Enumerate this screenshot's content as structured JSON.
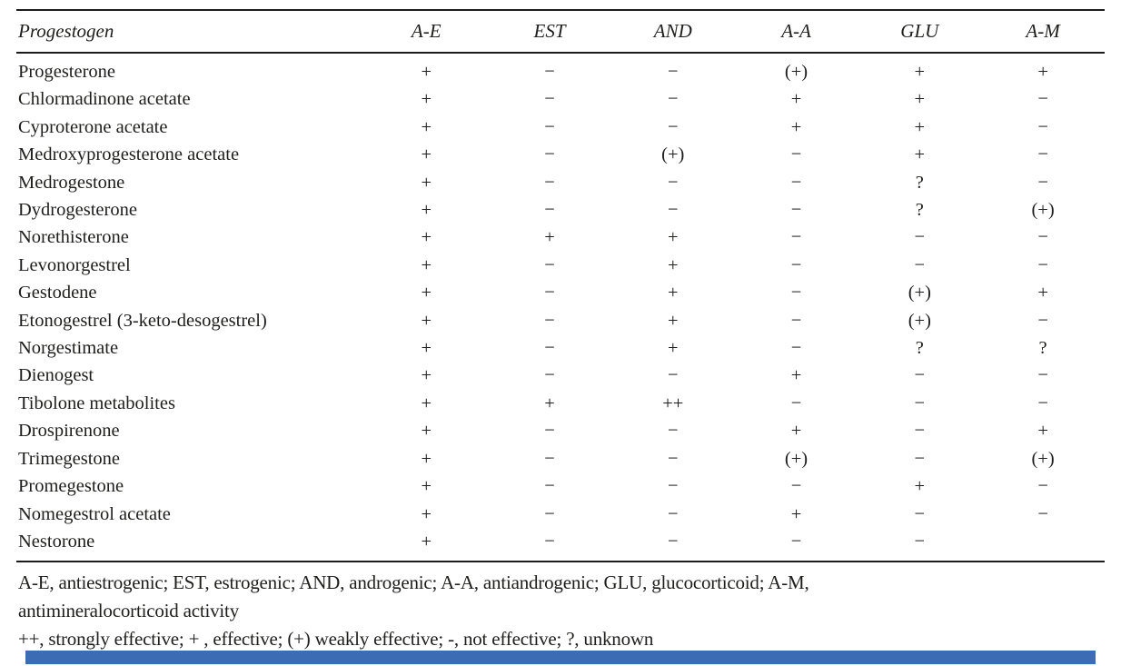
{
  "table": {
    "columns": [
      "Progestogen",
      "A-E",
      "EST",
      "AND",
      "A-A",
      "GLU",
      "A-M"
    ],
    "rows": [
      {
        "name": "Progesterone",
        "values": [
          "+",
          "−",
          "−",
          "(+)",
          "+",
          "+"
        ]
      },
      {
        "name": "Chlormadinone acetate",
        "values": [
          "+",
          "−",
          "−",
          "+",
          "+",
          "−"
        ]
      },
      {
        "name": "Cyproterone acetate",
        "values": [
          "+",
          "−",
          "−",
          "+",
          "+",
          "−"
        ]
      },
      {
        "name": "Medroxyprogesterone acetate",
        "values": [
          "+",
          "−",
          "(+)",
          "−",
          "+",
          "−"
        ]
      },
      {
        "name": "Medrogestone",
        "values": [
          "+",
          "−",
          "−",
          "−",
          "?",
          "−"
        ]
      },
      {
        "name": "Dydrogesterone",
        "values": [
          "+",
          "−",
          "−",
          "−",
          "?",
          "(+)"
        ]
      },
      {
        "name": "Norethisterone",
        "values": [
          "+",
          "+",
          "+",
          "−",
          "−",
          "−"
        ]
      },
      {
        "name": "Levonorgestrel",
        "values": [
          "+",
          "−",
          "+",
          "−",
          "−",
          "−"
        ]
      },
      {
        "name": "Gestodene",
        "values": [
          "+",
          "−",
          "+",
          "−",
          "(+)",
          "+"
        ]
      },
      {
        "name": "Etonogestrel (3-keto-desogestrel)",
        "values": [
          "+",
          "−",
          "+",
          "−",
          "(+)",
          "−"
        ]
      },
      {
        "name": "Norgestimate",
        "values": [
          "+",
          "−",
          "+",
          "−",
          "?",
          "?"
        ]
      },
      {
        "name": "Dienogest",
        "values": [
          "+",
          "−",
          "−",
          "+",
          "−",
          "−"
        ]
      },
      {
        "name": "Tibolone metabolites",
        "values": [
          "+",
          "+",
          "++",
          "−",
          "−",
          "−"
        ]
      },
      {
        "name": "Drospirenone",
        "values": [
          "+",
          "−",
          "−",
          "+",
          "−",
          "+"
        ]
      },
      {
        "name": "Trimegestone",
        "values": [
          "+",
          "−",
          "−",
          "(+)",
          "−",
          "(+)"
        ]
      },
      {
        "name": "Promegestone",
        "values": [
          "+",
          "−",
          "−",
          "−",
          "+",
          "−"
        ]
      },
      {
        "name": "Nomegestrol acetate",
        "values": [
          "+",
          "−",
          "−",
          "+",
          "−",
          "−"
        ]
      },
      {
        "name": "Nestorone",
        "values": [
          "+",
          "−",
          "−",
          "−",
          "−",
          ""
        ]
      }
    ],
    "footnote_lines": [
      "A-E, antiestrogenic; EST, estrogenic; AND, androgenic; A-A, antiandrogenic; GLU, glucocorticoid; A-M,",
      "antimineralocorticoid activity",
      "++, strongly effective; + , effective; (+) weakly effective; -, not effective; ?, unknown"
    ]
  },
  "decor": {
    "bottom_bar_color": "#3c6cb4"
  }
}
